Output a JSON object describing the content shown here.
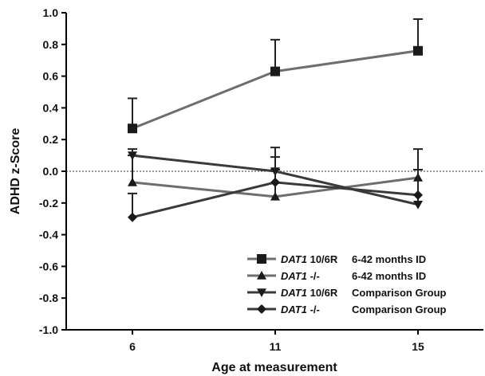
{
  "chart_data": {
    "type": "line",
    "x": [
      6,
      11,
      15
    ],
    "xlabel": "Age at measurement",
    "ylabel": "ADHD z-Score",
    "ylim": [
      -1.0,
      1.0
    ],
    "yticks": [
      "1.0",
      "0.8",
      "0.6",
      "0.4",
      "0.2",
      "0.0",
      "-0.2",
      "-0.4",
      "-0.6",
      "-0.8",
      "-1.0"
    ],
    "xticks": [
      "6",
      "11",
      "15"
    ],
    "reference_line": 0.0,
    "grid": false,
    "legend_placement": "bottom-right",
    "series": [
      {
        "gene": "DAT1",
        "genotype": " 10/6R",
        "group": "6-42 months ID",
        "marker": "square-icon",
        "color": "#6e6e6e",
        "values": [
          0.27,
          0.63,
          0.76
        ],
        "error": [
          0.19,
          0.2,
          0.2
        ],
        "error_dir": "up"
      },
      {
        "gene": "DAT1",
        "genotype": " -/-",
        "group": "6-42 months ID",
        "marker": "triangle-up-icon",
        "color": "#6e6e6e",
        "values": [
          -0.07,
          -0.16,
          -0.04
        ],
        "error": [
          0.17,
          0.17,
          0.18
        ],
        "error_dir": "up"
      },
      {
        "gene": "DAT1",
        "genotype": " 10/6R",
        "group": "Comparison Group",
        "marker": "triangle-down-icon",
        "color": "#3a3a3a",
        "values": [
          0.1,
          0.0,
          -0.21
        ],
        "error": [
          0.04,
          0.15,
          0.22
        ],
        "error_dir": "up"
      },
      {
        "gene": "DAT1",
        "genotype": " -/-",
        "group": "Comparison Group",
        "marker": "diamond-icon",
        "color": "#3a3a3a",
        "values": [
          -0.29,
          -0.07,
          -0.15
        ],
        "error": [
          0.15,
          0.16,
          0.16
        ],
        "error_dir": "up"
      }
    ]
  }
}
